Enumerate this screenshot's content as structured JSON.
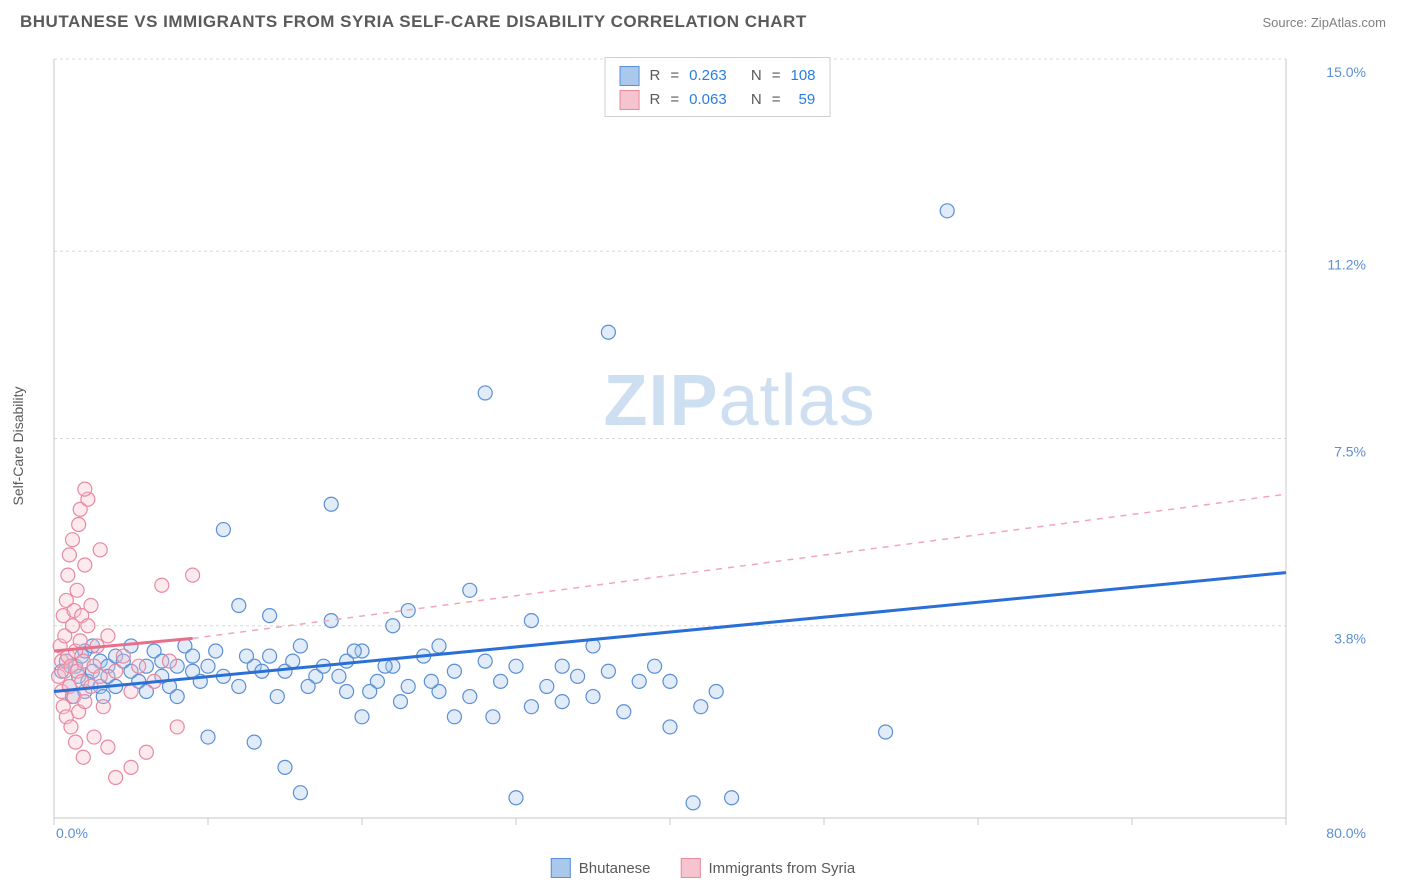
{
  "title": "BHUTANESE VS IMMIGRANTS FROM SYRIA SELF-CARE DISABILITY CORRELATION CHART",
  "source_label": "Source: ",
  "source_name": "ZipAtlas.com",
  "y_axis_label": "Self-Care Disability",
  "watermark_a": "ZIP",
  "watermark_b": "atlas",
  "chart": {
    "type": "scatter",
    "xlim": [
      0,
      80
    ],
    "ylim": [
      0,
      15
    ],
    "x_ticks": [
      0,
      10,
      20,
      30,
      40,
      50,
      60,
      70,
      80
    ],
    "x_tick_labels_shown": {
      "0": "0.0%",
      "80": "80.0%"
    },
    "y_gridlines": [
      3.8,
      7.5,
      11.2,
      15.0
    ],
    "y_tick_labels": [
      "3.8%",
      "7.5%",
      "11.2%",
      "15.0%"
    ],
    "grid_color": "#d8d8d8",
    "axis_color": "#c8c8c8",
    "background_color": "#ffffff",
    "marker_radius": 7,
    "series": [
      {
        "name": "Bhutanese",
        "color_fill": "#a9c8ec",
        "color_stroke": "#5b8fd6",
        "R": "0.263",
        "N": "108",
        "trend": {
          "x1": 0,
          "y1": 2.5,
          "x2": 80,
          "y2": 4.85,
          "solid_stroke": "#2a6fd6"
        },
        "points": [
          [
            0.5,
            2.9
          ],
          [
            0.8,
            3.1
          ],
          [
            1.0,
            2.6
          ],
          [
            1.2,
            2.4
          ],
          [
            1.4,
            3.0
          ],
          [
            1.6,
            2.8
          ],
          [
            1.8,
            3.2
          ],
          [
            2.0,
            2.5
          ],
          [
            2.0,
            3.3
          ],
          [
            2.2,
            2.7
          ],
          [
            2.5,
            2.9
          ],
          [
            2.5,
            3.4
          ],
          [
            3.0,
            2.6
          ],
          [
            3.0,
            3.1
          ],
          [
            3.2,
            2.4
          ],
          [
            3.5,
            3.0
          ],
          [
            3.5,
            2.8
          ],
          [
            4.0,
            3.2
          ],
          [
            4.0,
            2.6
          ],
          [
            4.5,
            3.1
          ],
          [
            5.0,
            2.9
          ],
          [
            5.0,
            3.4
          ],
          [
            5.5,
            2.7
          ],
          [
            6.0,
            3.0
          ],
          [
            6.0,
            2.5
          ],
          [
            6.5,
            3.3
          ],
          [
            7.0,
            2.8
          ],
          [
            7.0,
            3.1
          ],
          [
            7.5,
            2.6
          ],
          [
            8.0,
            3.0
          ],
          [
            8.0,
            2.4
          ],
          [
            8.5,
            3.4
          ],
          [
            9.0,
            2.9
          ],
          [
            9.0,
            3.2
          ],
          [
            9.5,
            2.7
          ],
          [
            10.0,
            3.0
          ],
          [
            10.0,
            1.6
          ],
          [
            10.5,
            3.3
          ],
          [
            11.0,
            2.8
          ],
          [
            11.0,
            5.7
          ],
          [
            12.0,
            4.2
          ],
          [
            12.0,
            2.6
          ],
          [
            13.0,
            3.0
          ],
          [
            13.0,
            1.5
          ],
          [
            14.0,
            3.2
          ],
          [
            14.0,
            4.0
          ],
          [
            15.0,
            2.9
          ],
          [
            15.0,
            1.0
          ],
          [
            16.0,
            3.4
          ],
          [
            16.0,
            0.5
          ],
          [
            17.0,
            2.8
          ],
          [
            18.0,
            3.9
          ],
          [
            18.0,
            6.2
          ],
          [
            19.0,
            3.1
          ],
          [
            19.0,
            2.5
          ],
          [
            20.0,
            3.3
          ],
          [
            20.0,
            2.0
          ],
          [
            21.0,
            2.7
          ],
          [
            22.0,
            3.8
          ],
          [
            22.0,
            3.0
          ],
          [
            23.0,
            2.6
          ],
          [
            23.0,
            4.1
          ],
          [
            24.0,
            3.2
          ],
          [
            25.0,
            2.5
          ],
          [
            25.0,
            3.4
          ],
          [
            26.0,
            2.9
          ],
          [
            27.0,
            4.5
          ],
          [
            27.0,
            2.4
          ],
          [
            28.0,
            3.1
          ],
          [
            28.0,
            8.4
          ],
          [
            29.0,
            2.7
          ],
          [
            30.0,
            3.0
          ],
          [
            30.0,
            0.4
          ],
          [
            31.0,
            3.9
          ],
          [
            31.0,
            2.2
          ],
          [
            32.0,
            2.6
          ],
          [
            33.0,
            3.0
          ],
          [
            33.0,
            2.3
          ],
          [
            34.0,
            2.8
          ],
          [
            35.0,
            3.4
          ],
          [
            35.0,
            2.4
          ],
          [
            36.0,
            2.9
          ],
          [
            36.0,
            9.6
          ],
          [
            37.0,
            2.1
          ],
          [
            38.0,
            2.7
          ],
          [
            39.0,
            3.0
          ],
          [
            40.0,
            2.7
          ],
          [
            40.0,
            1.8
          ],
          [
            42.0,
            2.2
          ],
          [
            43.0,
            2.5
          ],
          [
            44.0,
            0.4
          ],
          [
            54.0,
            1.7
          ],
          [
            58.0,
            12.0
          ],
          [
            41.5,
            0.3
          ],
          [
            28.5,
            2.0
          ],
          [
            26.0,
            2.0
          ],
          [
            24.5,
            2.7
          ],
          [
            22.5,
            2.3
          ],
          [
            21.5,
            3.0
          ],
          [
            20.5,
            2.5
          ],
          [
            19.5,
            3.3
          ],
          [
            18.5,
            2.8
          ],
          [
            17.5,
            3.0
          ],
          [
            16.5,
            2.6
          ],
          [
            15.5,
            3.1
          ],
          [
            14.5,
            2.4
          ],
          [
            13.5,
            2.9
          ],
          [
            12.5,
            3.2
          ]
        ]
      },
      {
        "name": "Immigrants from Syria",
        "color_fill": "#f6c4cf",
        "color_stroke": "#e88aa0",
        "R": "0.063",
        "N": "59",
        "trend": {
          "solid": {
            "x1": 0,
            "y1": 3.3,
            "x2": 9,
            "y2": 3.55,
            "stroke": "#e86f8b"
          },
          "dashed": {
            "x1": 9,
            "y1": 3.55,
            "x2": 80,
            "y2": 6.4,
            "stroke": "#f0a8b6"
          }
        },
        "points": [
          [
            0.3,
            2.8
          ],
          [
            0.4,
            3.4
          ],
          [
            0.5,
            2.5
          ],
          [
            0.5,
            3.1
          ],
          [
            0.6,
            4.0
          ],
          [
            0.6,
            2.2
          ],
          [
            0.7,
            3.6
          ],
          [
            0.7,
            2.9
          ],
          [
            0.8,
            4.3
          ],
          [
            0.8,
            2.0
          ],
          [
            0.9,
            3.2
          ],
          [
            0.9,
            4.8
          ],
          [
            1.0,
            2.6
          ],
          [
            1.0,
            5.2
          ],
          [
            1.1,
            3.0
          ],
          [
            1.1,
            1.8
          ],
          [
            1.2,
            3.8
          ],
          [
            1.2,
            5.5
          ],
          [
            1.3,
            2.4
          ],
          [
            1.3,
            4.1
          ],
          [
            1.4,
            3.3
          ],
          [
            1.4,
            1.5
          ],
          [
            1.5,
            2.9
          ],
          [
            1.5,
            4.5
          ],
          [
            1.6,
            5.8
          ],
          [
            1.6,
            2.1
          ],
          [
            1.7,
            3.5
          ],
          [
            1.7,
            6.1
          ],
          [
            1.8,
            2.7
          ],
          [
            1.8,
            4.0
          ],
          [
            1.9,
            3.1
          ],
          [
            1.9,
            1.2
          ],
          [
            2.0,
            5.0
          ],
          [
            2.0,
            2.3
          ],
          [
            2.2,
            3.8
          ],
          [
            2.2,
            6.3
          ],
          [
            2.4,
            2.6
          ],
          [
            2.4,
            4.2
          ],
          [
            2.6,
            3.0
          ],
          [
            2.6,
            1.6
          ],
          [
            2.8,
            3.4
          ],
          [
            3.0,
            2.8
          ],
          [
            3.0,
            5.3
          ],
          [
            3.2,
            2.2
          ],
          [
            3.5,
            3.6
          ],
          [
            3.5,
            1.4
          ],
          [
            4.0,
            2.9
          ],
          [
            4.0,
            0.8
          ],
          [
            4.5,
            3.2
          ],
          [
            5.0,
            2.5
          ],
          [
            5.0,
            1.0
          ],
          [
            5.5,
            3.0
          ],
          [
            6.0,
            1.3
          ],
          [
            6.5,
            2.7
          ],
          [
            7.0,
            4.6
          ],
          [
            7.5,
            3.1
          ],
          [
            8.0,
            1.8
          ],
          [
            9.0,
            4.8
          ],
          [
            2.0,
            6.5
          ]
        ]
      }
    ]
  },
  "legend_top": {
    "rows": [
      {
        "swatch_fill": "#a9c8ec",
        "swatch_stroke": "#5b8fd6",
        "r_label": "R",
        "eq": "=",
        "r_val": "0.263",
        "n_label": "N",
        "n_val": "108"
      },
      {
        "swatch_fill": "#f6c4cf",
        "swatch_stroke": "#e88aa0",
        "r_label": "R",
        "eq": "=",
        "r_val": "0.063",
        "n_label": "N",
        "n_val": "59"
      }
    ]
  },
  "legend_bottom": {
    "items": [
      {
        "swatch_fill": "#a9c8ec",
        "swatch_stroke": "#5b8fd6",
        "label": "Bhutanese"
      },
      {
        "swatch_fill": "#f6c4cf",
        "swatch_stroke": "#e88aa0",
        "label": "Immigrants from Syria"
      }
    ]
  }
}
